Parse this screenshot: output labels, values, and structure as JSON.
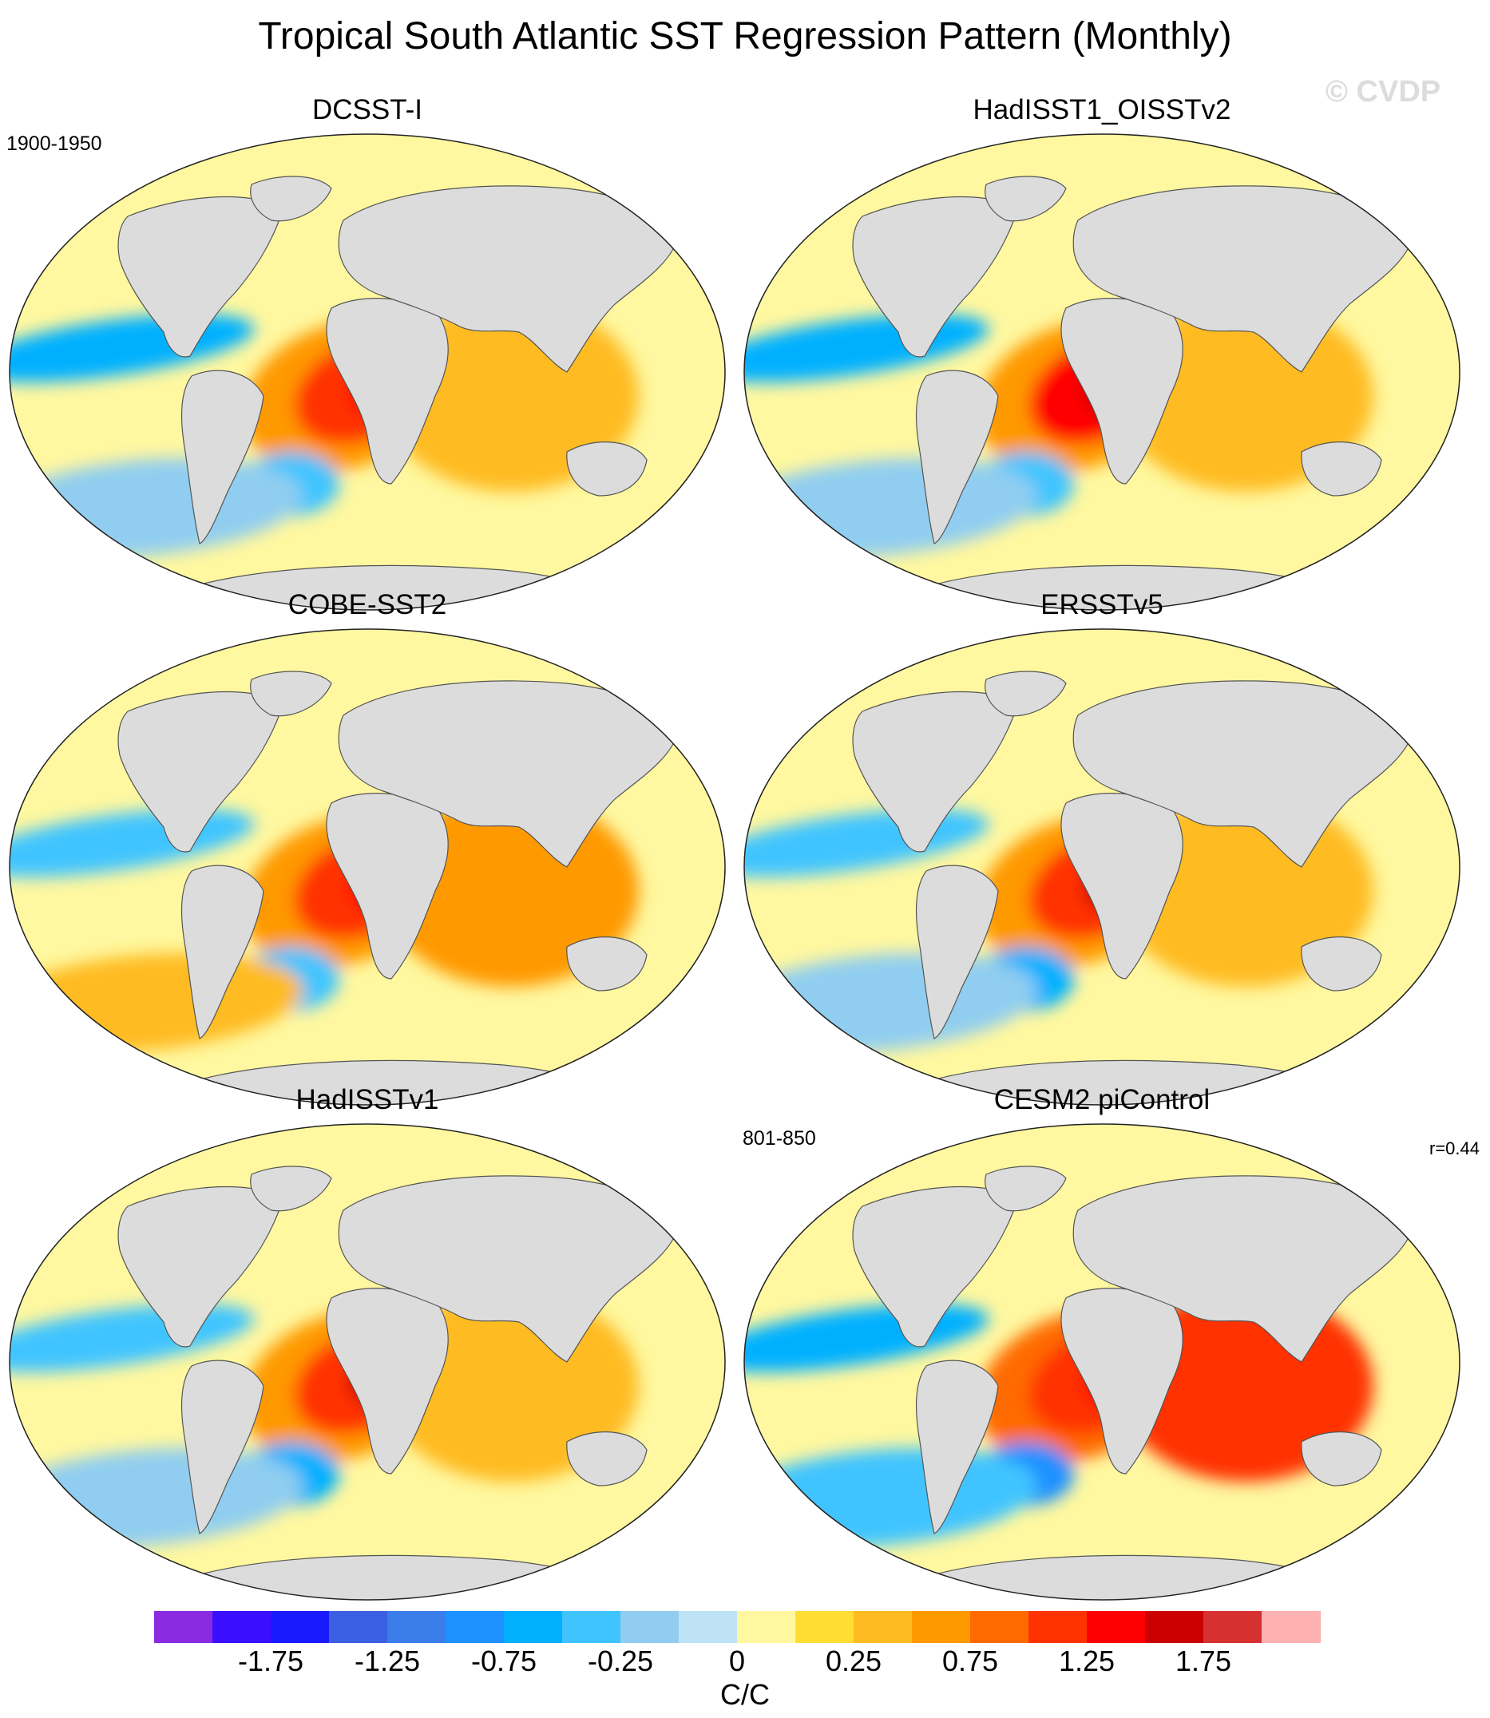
{
  "title": "Tropical South Atlantic SST Regression Pattern (Monthly)",
  "watermark": "© CVDP",
  "land_color": "#dcdcdc",
  "ocean_base_color": "#fff8a0",
  "panels": [
    {
      "name": "DCSST-I",
      "title": "DCSST-I",
      "period": "1900-1950",
      "correlation": "",
      "dominant_sign": "mixed",
      "patch_levels": [
        0.5,
        1.0,
        1.25,
        -0.5,
        -0.75,
        0.25,
        -0.25
      ]
    },
    {
      "name": "HadISST1_OISSTv2",
      "title": "HadISST1_OISSTv2",
      "period": "",
      "correlation": "",
      "dominant_sign": "positive",
      "patch_levels": [
        0.5,
        1.25,
        1.5,
        -0.5,
        -0.75,
        0.25,
        -0.25
      ]
    },
    {
      "name": "COBE-SST2",
      "title": "COBE-SST2",
      "period": "",
      "correlation": "",
      "dominant_sign": "positive",
      "patch_levels": [
        0.5,
        1.0,
        1.25,
        -0.5,
        -0.5,
        0.5,
        0.25
      ]
    },
    {
      "name": "ERSSTv5",
      "title": "ERSSTv5",
      "period": "",
      "correlation": "",
      "dominant_sign": "positive",
      "patch_levels": [
        0.5,
        1.0,
        1.5,
        -0.75,
        -0.5,
        0.25,
        -0.25
      ]
    },
    {
      "name": "HadISSTv1",
      "title": "HadISSTv1",
      "period": "",
      "correlation": "",
      "dominant_sign": "positive",
      "patch_levels": [
        0.5,
        1.0,
        1.5,
        -0.75,
        -0.5,
        0.25,
        -0.25
      ]
    },
    {
      "name": "CESM2 piControl",
      "title": "CESM2 piControl",
      "period": "801-850",
      "correlation": "r=0.44",
      "dominant_sign": "mixed",
      "patch_levels": [
        0.75,
        1.0,
        1.25,
        -1.0,
        -0.75,
        1.0,
        -0.5
      ]
    }
  ],
  "colorbar": {
    "units": "C/C",
    "colors": [
      "#8a2be2",
      "#3a0fff",
      "#1a1aff",
      "#3a5fe0",
      "#3a7de8",
      "#1e90ff",
      "#00b0ff",
      "#40c4ff",
      "#90cdf0",
      "#bde3f5",
      "#fff8a0",
      "#ffdd33",
      "#ffbb22",
      "#ff9900",
      "#ff6a00",
      "#ff3300",
      "#ff0000",
      "#cc0000",
      "#d73030",
      "#ffb0b0"
    ],
    "bounds": [
      -2.0,
      -1.75,
      -1.5,
      -1.25,
      -1.0,
      -0.75,
      -0.5,
      -0.25,
      -0.125,
      0,
      0.125,
      0.25,
      0.5,
      0.75,
      1.0,
      1.25,
      1.5,
      1.75,
      2.0
    ],
    "tick_labels": [
      "-1.75",
      "-1.25",
      "-0.75",
      "-0.25",
      "0",
      "0.25",
      "0.75",
      "1.25",
      "1.75"
    ],
    "tick_values": [
      -1.75,
      -1.25,
      -0.75,
      -0.25,
      0,
      0.25,
      0.75,
      1.25,
      1.75
    ]
  }
}
